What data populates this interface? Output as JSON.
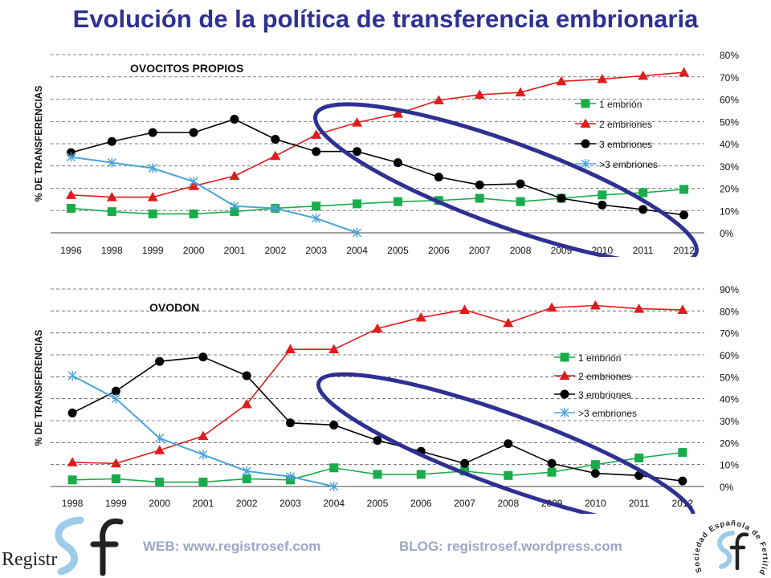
{
  "title": "Evolución de la política de transferencia embrionaria",
  "colors": {
    "title": "#2e3192",
    "one_embryo": "#1aab4a",
    "two_embryos": "#e11b1b",
    "three_embryos": "#000000",
    "more_three": "#4aa3d8",
    "ellipse": "#2e3192",
    "footer": "#9aa7c7"
  },
  "chart_data": [
    {
      "type": "line",
      "title": "OVOCITOS PROPIOS",
      "ylabel": "% DE TRANSFERENCIAS",
      "xlabel": "",
      "categories": [
        "1996",
        "1998",
        "1999",
        "2000",
        "2001",
        "2002",
        "2003",
        "2004",
        "2005",
        "2006",
        "2007",
        "2008",
        "2009",
        "2010",
        "2011",
        "2012"
      ],
      "ylim": [
        0,
        80
      ],
      "yticks": [
        "0%",
        "10%",
        "20%",
        "30%",
        "40%",
        "50%",
        "60%",
        "70%",
        "80%"
      ],
      "grid": "horizontal-dashed",
      "legend": "right",
      "series": [
        {
          "name": "1 embrión",
          "marker": "square",
          "color_key": "one_embryo",
          "values": [
            11,
            9.5,
            8.5,
            8.5,
            9.5,
            11,
            12,
            13,
            14,
            14.5,
            15.5,
            14,
            15.5,
            17,
            18,
            19.5
          ]
        },
        {
          "name": "2 embriones",
          "marker": "triangle",
          "color_key": "two_embryos",
          "values": [
            17,
            16,
            16,
            21,
            25.5,
            34.5,
            44,
            49.5,
            53.5,
            59.5,
            62,
            63,
            68,
            69,
            70.5,
            72
          ]
        },
        {
          "name": "3 embriones",
          "marker": "circle",
          "color_key": "three_embryos",
          "values": [
            36,
            41,
            45,
            45,
            51,
            42,
            36.5,
            36.5,
            31.5,
            25,
            21.5,
            22,
            15.5,
            12.5,
            10.5,
            8
          ]
        },
        {
          "name": ">3 embriones",
          "marker": "x",
          "color_key": "more_three",
          "values": [
            34,
            31.5,
            29,
            23,
            12,
            11,
            6.5,
            0,
            null,
            null,
            null,
            null,
            null,
            null,
            null,
            null
          ]
        }
      ]
    },
    {
      "type": "line",
      "title": "OVODON",
      "ylabel": "% DE TRANSFERENCIAS",
      "xlabel": "",
      "categories": [
        "1998",
        "1999",
        "2000",
        "2001",
        "2002",
        "2003",
        "2004",
        "2005",
        "2006",
        "2007",
        "2008",
        "2009",
        "2010",
        "2011",
        "2012"
      ],
      "ylim": [
        0,
        90
      ],
      "yticks": [
        "0%",
        "10%",
        "20%",
        "30%",
        "40%",
        "50%",
        "60%",
        "70%",
        "80%",
        "90%"
      ],
      "grid": "horizontal-dashed",
      "legend": "right",
      "series": [
        {
          "name": "1 embrión",
          "marker": "square",
          "color_key": "one_embryo",
          "values": [
            3,
            3.5,
            2,
            2,
            3.5,
            3,
            8.5,
            5.5,
            5.5,
            7,
            5,
            6.5,
            10,
            13,
            15.5
          ]
        },
        {
          "name": "2 embriones",
          "marker": "triangle",
          "color_key": "two_embryos",
          "values": [
            11,
            10.5,
            16.5,
            23,
            37.5,
            62.5,
            62.5,
            72,
            77,
            80.5,
            74.5,
            81.5,
            82.5,
            81,
            80.5
          ]
        },
        {
          "name": "3 embriones",
          "marker": "circle",
          "color_key": "three_embryos",
          "values": [
            33.5,
            43.5,
            57,
            59,
            50.5,
            29,
            28,
            21,
            16,
            10.5,
            19.5,
            10.5,
            6,
            5,
            2.5
          ]
        },
        {
          "name": ">3 embriones",
          "marker": "x",
          "color_key": "more_three",
          "values": [
            50.5,
            40,
            22,
            14.5,
            7,
            4.5,
            0,
            null,
            null,
            null,
            null,
            null,
            null,
            null,
            null
          ]
        }
      ]
    }
  ],
  "footer": {
    "web": "WEB: www.registrosef.com",
    "blog": "BLOG: registrosef.wordpress.com",
    "logo_left_text": "Registr",
    "logo_right_text": "Sociedad Española de Fertilidad"
  }
}
